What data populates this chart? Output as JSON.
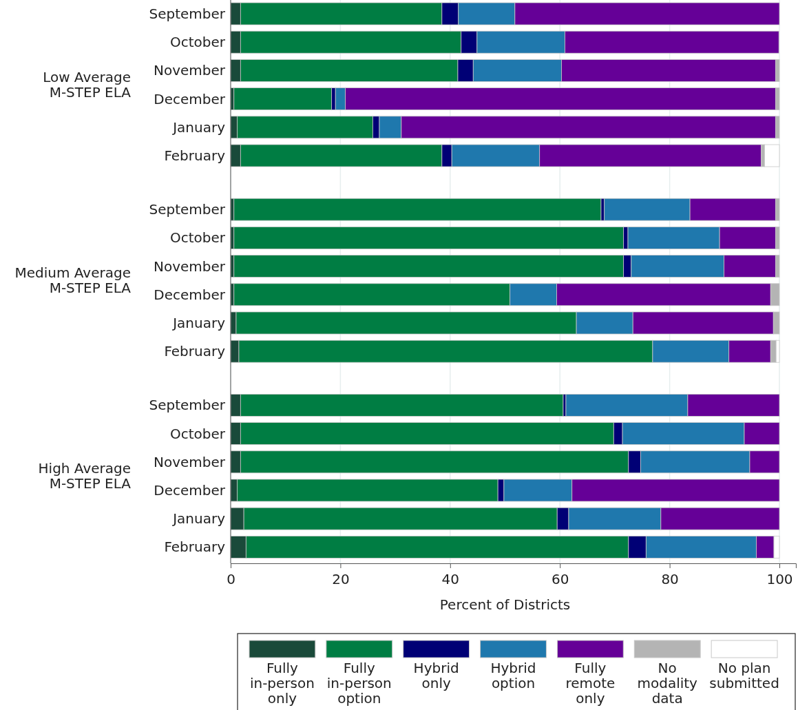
{
  "chart_data": {
    "type": "bar",
    "orientation": "horizontal",
    "stacked": true,
    "xlabel": "Percent of Districts",
    "categories": [
      "September",
      "October",
      "November",
      "December",
      "January",
      "February",
      "September",
      "October",
      "November",
      "December",
      "January",
      "February",
      "September",
      "October",
      "November",
      "December",
      "January",
      "February"
    ],
    "annotations": [
      "Low Average\nM-STEP ELA",
      "Medium Average\nM-STEP ELA",
      "High Average\nM-STEP ELA"
    ],
    "xlim": [
      0,
      103
    ],
    "xticks": [
      0,
      20,
      40,
      60,
      80,
      100
    ],
    "grid": "x",
    "legend": "bottom",
    "series": [
      {
        "name": "Fully in-person only",
        "color": "#1a4a3a",
        "values": [
          1.8,
          1.8,
          1.8,
          0.6,
          1.2,
          1.8,
          0.6,
          0.6,
          0.6,
          0.6,
          1.0,
          1.5,
          1.8,
          1.8,
          1.8,
          1.2,
          2.4,
          2.8
        ]
      },
      {
        "name": "Fully in-person option",
        "color": "#007d43",
        "values": [
          36.7,
          40.2,
          39.6,
          17.8,
          24.7,
          36.7,
          66.9,
          71.0,
          71.0,
          50.3,
          62.0,
          75.4,
          58.8,
          68.0,
          70.7,
          47.5,
          57.1,
          69.7
        ]
      },
      {
        "name": "Hybrid only",
        "color": "#000075",
        "values": [
          3.0,
          2.9,
          2.8,
          0.7,
          1.2,
          1.8,
          0.6,
          0.8,
          1.4,
          0,
          0,
          0,
          0.5,
          1.6,
          2.2,
          1.1,
          2.1,
          3.2
        ]
      },
      {
        "name": "Hybrid option",
        "color": "#1f78ad",
        "values": [
          10.3,
          16.0,
          16.1,
          1.8,
          4.0,
          16.0,
          15.6,
          16.7,
          16.9,
          8.5,
          10.3,
          13.9,
          22.2,
          22.2,
          19.9,
          12.4,
          16.8,
          20.1
        ]
      },
      {
        "name": "Fully remote only",
        "color": "#650097",
        "values": [
          48.2,
          39.0,
          39.0,
          78.4,
          68.2,
          40.4,
          15.6,
          10.2,
          9.4,
          39.0,
          25.6,
          7.6,
          16.7,
          6.4,
          5.4,
          37.8,
          21.6,
          3.2
        ]
      },
      {
        "name": "No modality data",
        "color": "#b4b4b4",
        "values": [
          0,
          0,
          0.7,
          0.7,
          0.7,
          0.6,
          0.7,
          0.7,
          0.7,
          1.6,
          1.1,
          1.0,
          0,
          0,
          0,
          0,
          0,
          0
        ]
      },
      {
        "name": "No plan submitted",
        "color": "#ffffff",
        "values": [
          0,
          0,
          0,
          0,
          0,
          2.7,
          0,
          0,
          0,
          0,
          0,
          0.6,
          0,
          0,
          0,
          0,
          0,
          1.0
        ]
      }
    ]
  }
}
